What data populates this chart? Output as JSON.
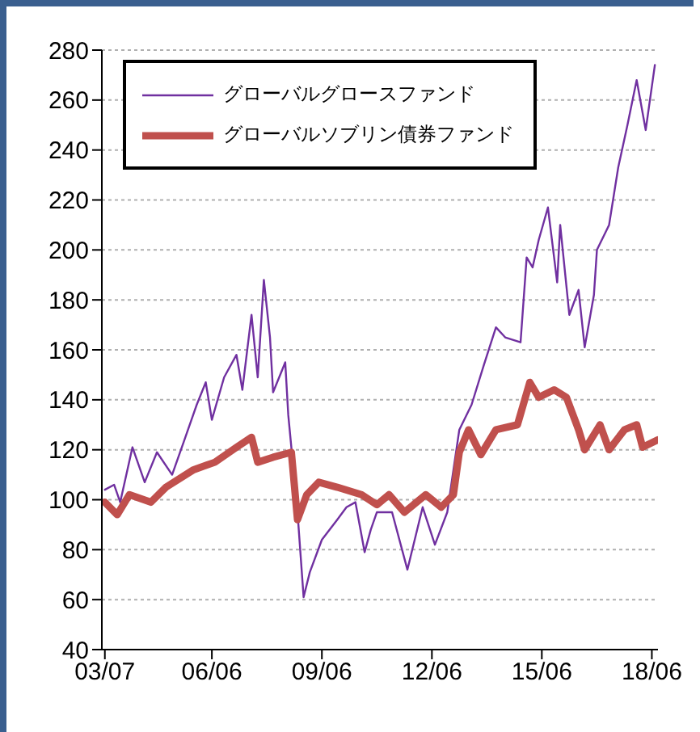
{
  "chart_data": {
    "type": "line",
    "xlim": [
      "2003-06",
      "2018-08"
    ],
    "xticks": [
      {
        "value": "2003-07",
        "label": "03/07"
      },
      {
        "value": "2006-06",
        "label": "06/06"
      },
      {
        "value": "2009-06",
        "label": "09/06"
      },
      {
        "value": "2012-06",
        "label": "12/06"
      },
      {
        "value": "2015-06",
        "label": "15/06"
      },
      {
        "value": "2018-06",
        "label": "18/06"
      }
    ],
    "ylim": [
      40,
      280
    ],
    "yticks": [
      40,
      60,
      80,
      100,
      120,
      140,
      160,
      180,
      200,
      220,
      240,
      260,
      280
    ],
    "grid": "y",
    "legend": "top left",
    "marker": "none",
    "series": [
      {
        "name": "グローバルグロースファンド",
        "color": "#7030a0",
        "x": [
          "2003-07",
          "2003-10",
          "2003-12",
          "2004-04",
          "2004-08",
          "2004-12",
          "2005-05",
          "2005-09",
          "2006-01",
          "2006-04",
          "2006-06",
          "2006-10",
          "2007-02",
          "2007-04",
          "2007-07",
          "2007-09",
          "2007-11",
          "2008-01",
          "2008-02",
          "2008-06",
          "2008-07",
          "2008-10",
          "2008-12",
          "2009-02",
          "2009-06",
          "2009-11",
          "2010-02",
          "2010-05",
          "2010-08",
          "2010-10",
          "2010-12",
          "2011-05",
          "2011-10",
          "2012-03",
          "2012-07",
          "2012-11",
          "2013-03",
          "2013-07",
          "2013-11",
          "2014-03",
          "2014-06",
          "2014-11",
          "2015-01",
          "2015-03",
          "2015-05",
          "2015-08",
          "2015-11",
          "2015-12",
          "2016-03",
          "2016-06",
          "2016-08",
          "2016-11",
          "2016-12",
          "2017-04",
          "2017-07",
          "2017-10",
          "2018-01",
          "2018-04",
          "2018-07"
        ],
        "values": [
          104,
          106,
          99,
          121,
          107,
          119,
          110,
          124,
          138,
          147,
          132,
          149,
          158,
          144,
          174,
          149,
          188,
          165,
          143,
          155,
          134,
          95,
          61,
          71,
          84,
          92,
          97,
          99,
          79,
          88,
          95,
          95,
          72,
          97,
          82,
          95,
          128,
          138,
          154,
          169,
          165,
          163,
          197,
          193,
          204,
          217,
          187,
          210,
          174,
          184,
          161,
          182,
          200,
          210,
          233,
          250,
          268,
          248,
          274
        ]
      },
      {
        "name": "グローバルソブリン債券ファンド",
        "color": "#c0504d",
        "x": [
          "2003-07",
          "2003-11",
          "2004-03",
          "2004-10",
          "2005-03",
          "2005-12",
          "2006-07",
          "2007-02",
          "2007-07",
          "2007-09",
          "2008-02",
          "2008-08",
          "2008-10",
          "2009-01",
          "2009-05",
          "2009-11",
          "2010-07",
          "2010-12",
          "2011-04",
          "2011-09",
          "2012-04",
          "2012-09",
          "2013-01",
          "2013-03",
          "2013-06",
          "2013-10",
          "2014-03",
          "2014-10",
          "2015-02",
          "2015-05",
          "2015-10",
          "2016-02",
          "2016-06",
          "2016-08",
          "2017-01",
          "2017-04",
          "2017-09",
          "2018-01",
          "2018-03",
          "2018-08"
        ],
        "values": [
          99,
          94,
          102,
          99,
          105,
          112,
          115,
          121,
          125,
          115,
          117,
          119,
          92,
          102,
          107,
          105,
          102,
          98,
          102,
          95,
          102,
          97,
          102,
          119,
          128,
          118,
          128,
          130,
          147,
          141,
          144,
          141,
          128,
          120,
          130,
          120,
          128,
          130,
          121,
          124
        ]
      }
    ]
  }
}
